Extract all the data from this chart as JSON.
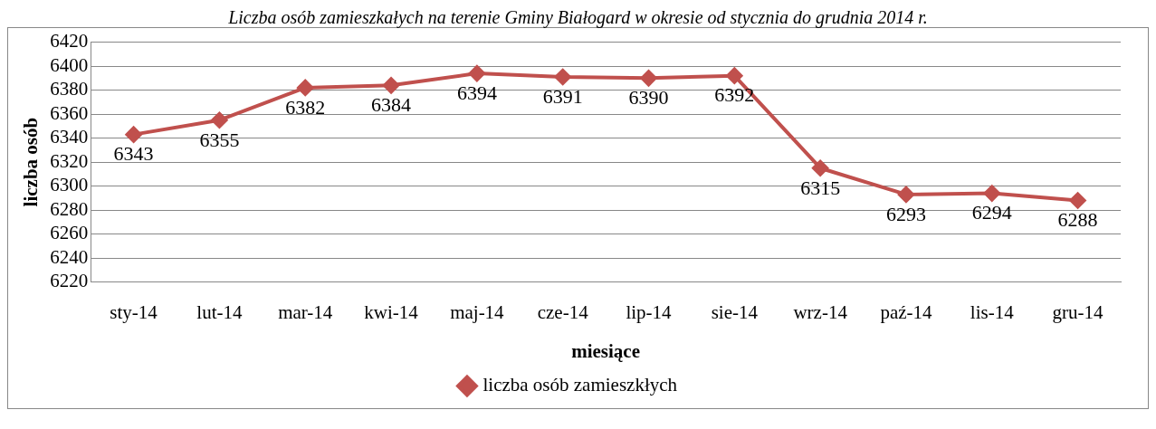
{
  "chart_data": {
    "type": "line",
    "title": "Liczba osób zamieszkałych na terenie Gminy Białogard w okresie od stycznia do grudnia 2014 r.",
    "xlabel": "miesiące",
    "ylabel": "liczba osób",
    "categories": [
      "sty-14",
      "lut-14",
      "mar-14",
      "kwi-14",
      "maj-14",
      "cze-14",
      "lip-14",
      "sie-14",
      "wrz-14",
      "paź-14",
      "lis-14",
      "gru-14"
    ],
    "series": [
      {
        "name": "liczba osób zamieszkłych",
        "color": "#c0504d",
        "values": [
          6343,
          6355,
          6382,
          6384,
          6394,
          6391,
          6390,
          6392,
          6315,
          6293,
          6294,
          6288
        ]
      }
    ],
    "ylim": [
      6220,
      6420
    ],
    "yticks": [
      6220,
      6240,
      6260,
      6280,
      6300,
      6320,
      6340,
      6360,
      6380,
      6400,
      6420
    ],
    "grid": "y",
    "legend": "bottom",
    "marker": "diamond",
    "data_labels": true
  }
}
